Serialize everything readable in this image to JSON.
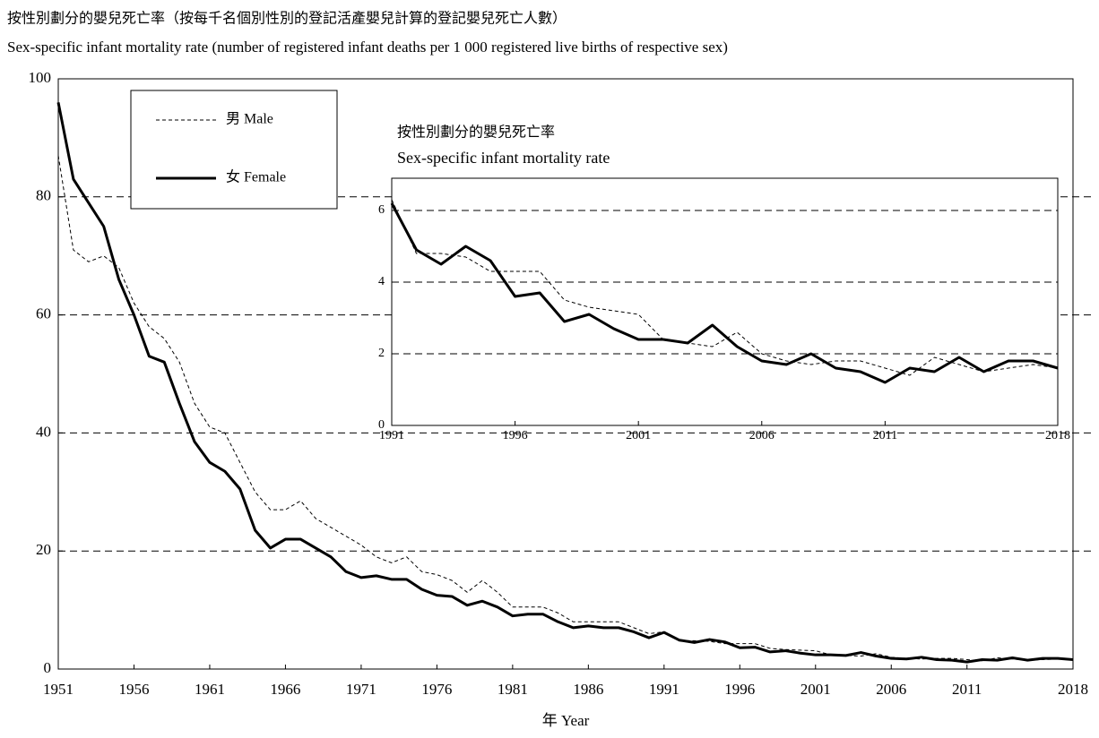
{
  "chart_data": [
    {
      "type": "line",
      "title": "按性別劃分的嬰兒死亡率（按每千名個別性別的登記活產嬰兒計算的登記嬰兒死亡人數）",
      "subtitle": "Sex-specific  infant mortality rate (number of registered infant deaths per 1 000 registered live births of respective sex)",
      "x_label": "年 Year",
      "x": [
        1951,
        1952,
        1953,
        1954,
        1955,
        1956,
        1957,
        1958,
        1959,
        1960,
        1961,
        1962,
        1963,
        1964,
        1965,
        1966,
        1967,
        1968,
        1969,
        1970,
        1971,
        1972,
        1973,
        1974,
        1975,
        1976,
        1977,
        1978,
        1979,
        1980,
        1981,
        1982,
        1983,
        1984,
        1985,
        1986,
        1987,
        1988,
        1989,
        1990,
        1991,
        1992,
        1993,
        1994,
        1995,
        1996,
        1997,
        1998,
        1999,
        2000,
        2001,
        2002,
        2003,
        2004,
        2005,
        2006,
        2007,
        2008,
        2009,
        2010,
        2011,
        2012,
        2013,
        2014,
        2015,
        2016,
        2017,
        2018
      ],
      "xlim": [
        1951,
        2018
      ],
      "xticks": [
        1951,
        1956,
        1961,
        1966,
        1971,
        1976,
        1981,
        1986,
        1991,
        1996,
        2001,
        2006,
        2011,
        2018
      ],
      "ylim": [
        0,
        100
      ],
      "yticks": [
        0,
        20,
        40,
        60,
        80,
        100
      ],
      "grid": true,
      "legend": "upper left",
      "series": [
        {
          "name": "男 Male",
          "color": "#000000",
          "linestyle": "dashed",
          "values": [
            87,
            71,
            69,
            70,
            68,
            62,
            58,
            56,
            52,
            45,
            41,
            40,
            35,
            30,
            27,
            27,
            28.5,
            25.5,
            24,
            22.5,
            21,
            19,
            18,
            19,
            16.5,
            16,
            15,
            13,
            15,
            13,
            10.5,
            10.5,
            10.5,
            9.5,
            8,
            8,
            8,
            8,
            7,
            6,
            6.3,
            4.8,
            4.8,
            4.7,
            4.3,
            4.3,
            4.3,
            3.5,
            3.3,
            3.2,
            3.1,
            2.4,
            2.3,
            2.2,
            2.6,
            2.0,
            1.8,
            1.7,
            1.8,
            1.8,
            1.6,
            1.4,
            1.9,
            1.7,
            1.5,
            1.6,
            1.7,
            1.6
          ]
        },
        {
          "name": "女 Female",
          "color": "#000000",
          "linestyle": "solid",
          "values": [
            96,
            83,
            79,
            75,
            66,
            60,
            53,
            52,
            45,
            38.5,
            35,
            33.5,
            30.5,
            23.5,
            20.5,
            22,
            22,
            20.5,
            19,
            16.5,
            15.5,
            15.8,
            15.2,
            15.2,
            13.5,
            12.5,
            12.3,
            10.8,
            11.5,
            10.5,
            9,
            9.3,
            9.3,
            8,
            7,
            7.3,
            7,
            7,
            6.3,
            5.3,
            6.2,
            4.9,
            4.5,
            5.0,
            4.6,
            3.6,
            3.7,
            2.9,
            3.1,
            2.7,
            2.4,
            2.4,
            2.3,
            2.8,
            2.2,
            1.8,
            1.7,
            2.0,
            1.6,
            1.5,
            1.2,
            1.6,
            1.5,
            1.9,
            1.5,
            1.8,
            1.8,
            1.6
          ]
        }
      ]
    },
    {
      "type": "line",
      "title": "按性別劃分的嬰兒死亡率",
      "subtitle": "Sex-specific  infant mortality rate",
      "x": [
        1991,
        1992,
        1993,
        1994,
        1995,
        1996,
        1997,
        1998,
        1999,
        2000,
        2001,
        2002,
        2003,
        2004,
        2005,
        2006,
        2007,
        2008,
        2009,
        2010,
        2011,
        2012,
        2013,
        2014,
        2015,
        2016,
        2017,
        2018
      ],
      "xlim": [
        1991,
        2018
      ],
      "xticks": [
        1991,
        1996,
        2001,
        2006,
        2011,
        2018
      ],
      "ylim": [
        0,
        6.9
      ],
      "yticks": [
        0,
        2,
        4,
        6
      ],
      "grid": true,
      "series": [
        {
          "color": "#000000",
          "linestyle": "dashed",
          "values": [
            6.3,
            4.8,
            4.8,
            4.7,
            4.3,
            4.3,
            4.3,
            3.5,
            3.3,
            3.2,
            3.1,
            2.4,
            2.3,
            2.2,
            2.6,
            2.0,
            1.8,
            1.7,
            1.8,
            1.8,
            1.6,
            1.4,
            1.9,
            1.7,
            1.5,
            1.6,
            1.7,
            1.6
          ]
        },
        {
          "color": "#000000",
          "linestyle": "solid",
          "values": [
            6.2,
            4.9,
            4.5,
            5.0,
            4.6,
            3.6,
            3.7,
            2.9,
            3.1,
            2.7,
            2.4,
            2.4,
            2.3,
            2.8,
            2.2,
            1.8,
            1.7,
            2.0,
            1.6,
            1.5,
            1.2,
            1.6,
            1.5,
            1.9,
            1.5,
            1.8,
            1.8,
            1.6
          ]
        }
      ]
    }
  ]
}
